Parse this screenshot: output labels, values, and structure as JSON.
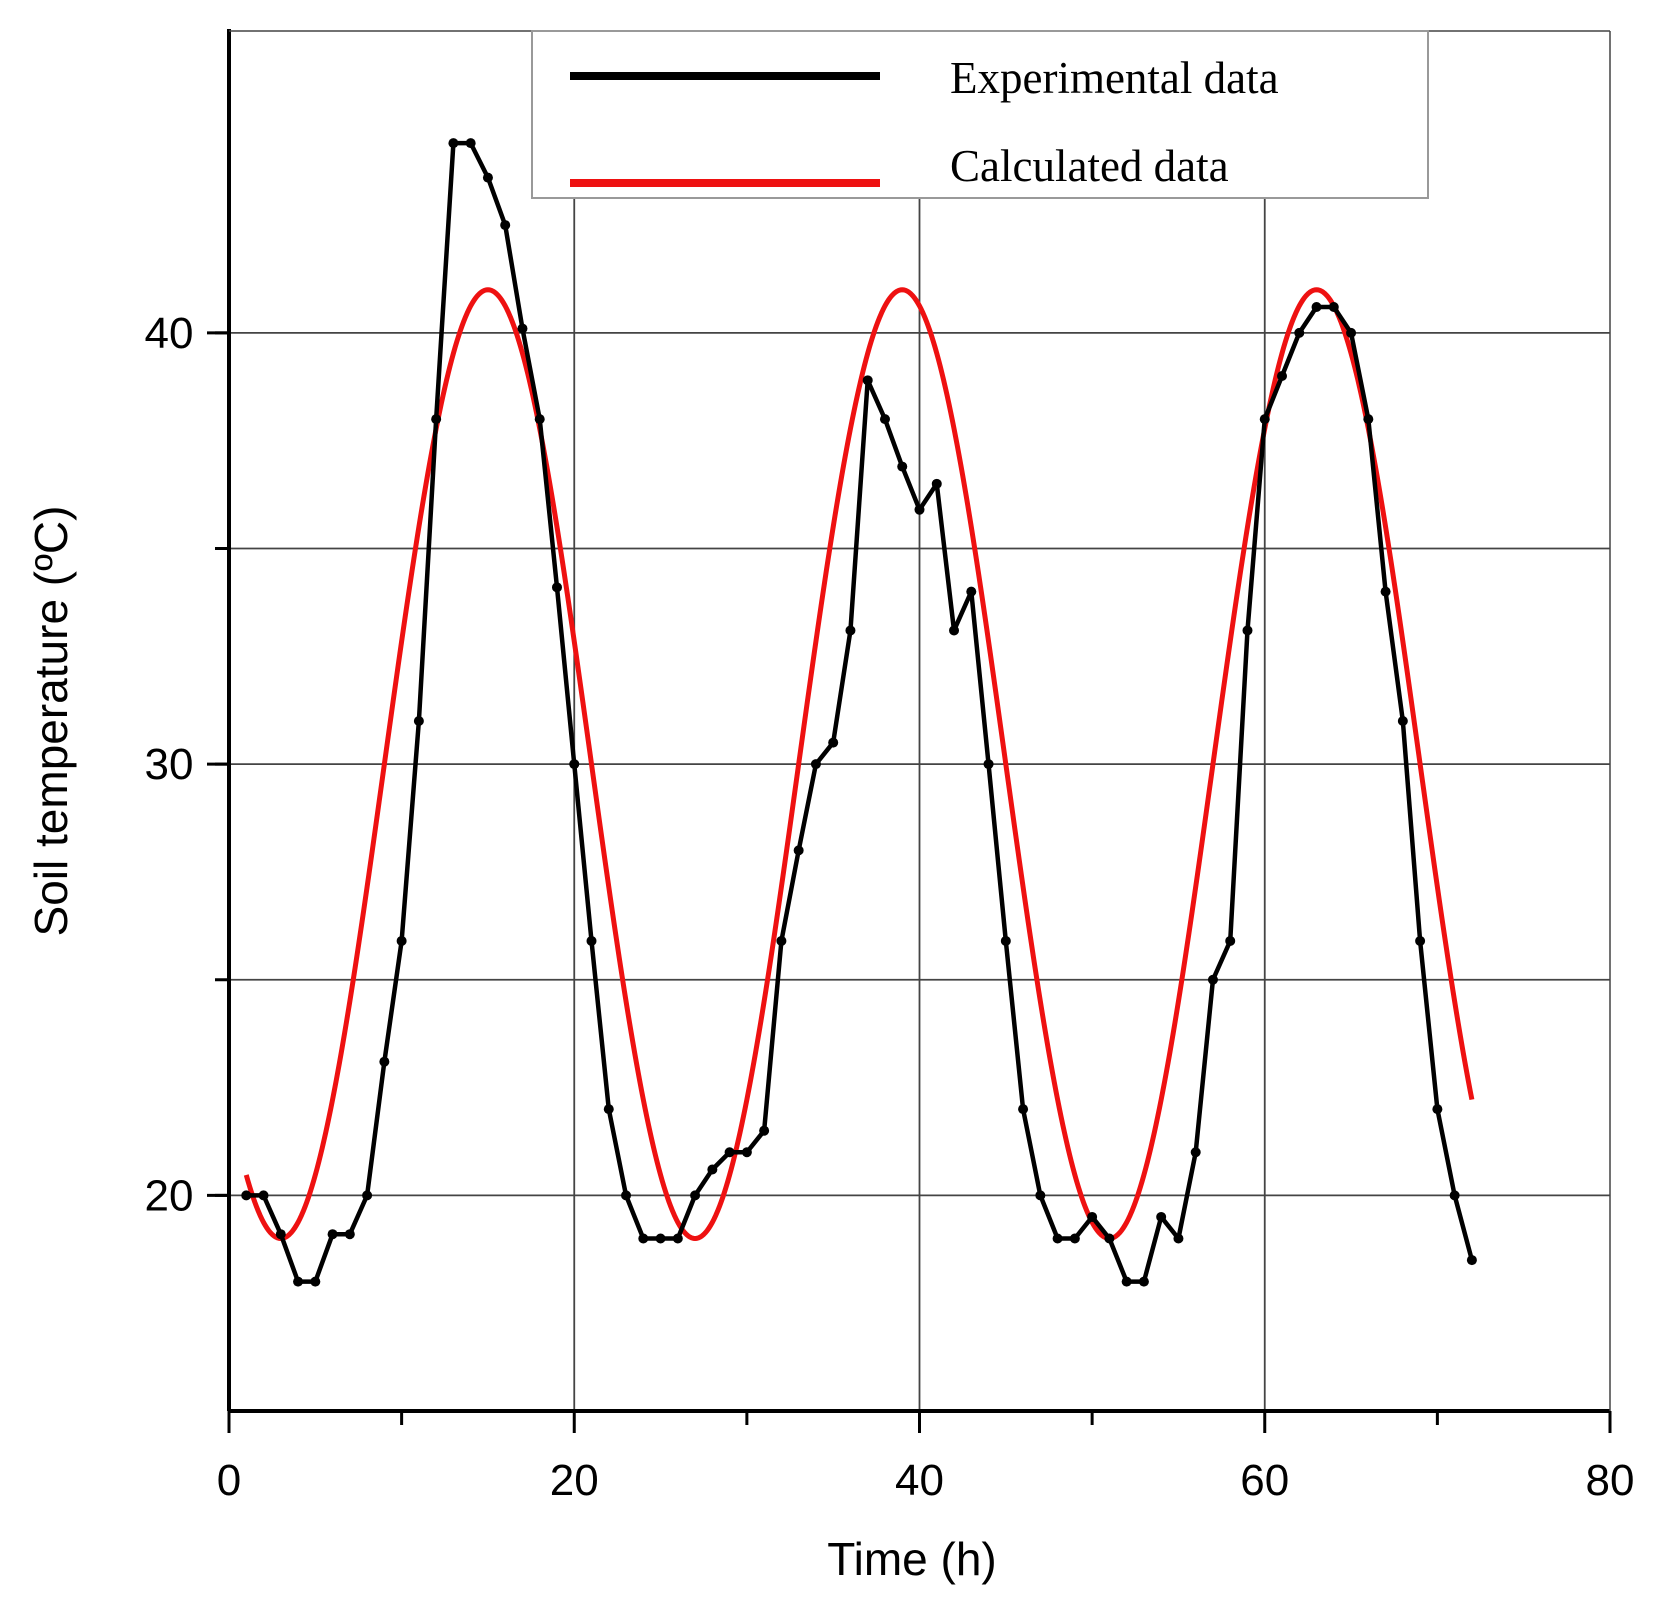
{
  "chart_data": {
    "type": "line",
    "title": "",
    "xlabel": "Time (h)",
    "ylabel": "Soil temperature (ºC)",
    "xlim": [
      0,
      80
    ],
    "ylim": [
      15,
      47
    ],
    "xticks": [
      0,
      20,
      40,
      60,
      80
    ],
    "xtick_labels": [
      "0",
      "20",
      "40",
      "60",
      "80"
    ],
    "xminor": [
      10,
      30,
      50,
      70
    ],
    "yticks": [
      20,
      30,
      40
    ],
    "ytick_labels": [
      "20",
      "30",
      "40"
    ],
    "ygrid": [
      20,
      25,
      30,
      35,
      40
    ],
    "grid": true,
    "legend_position": "top-center",
    "series": [
      {
        "name": "Experimental data",
        "color": "#000000",
        "markers": true,
        "x": [
          1,
          2,
          3,
          4,
          5,
          6,
          7,
          8,
          9,
          10,
          11,
          12,
          13,
          14,
          15,
          16,
          17,
          18,
          19,
          20,
          21,
          22,
          23,
          24,
          25,
          26,
          27,
          28,
          29,
          30,
          31,
          32,
          33,
          34,
          35,
          36,
          37,
          38,
          39,
          40,
          41,
          42,
          43,
          44,
          45,
          46,
          47,
          48,
          49,
          50,
          51,
          52,
          53,
          54,
          55,
          56,
          57,
          58,
          59,
          60,
          61,
          62,
          63,
          64,
          65,
          66,
          67,
          68,
          69,
          70,
          71,
          72
        ],
        "y": [
          20.0,
          20.0,
          19.1,
          18.0,
          18.0,
          19.1,
          19.1,
          20.0,
          23.1,
          25.9,
          31.0,
          38.0,
          44.4,
          44.4,
          43.6,
          42.5,
          40.1,
          38.0,
          34.1,
          30.0,
          25.9,
          22.0,
          20.0,
          19.0,
          19.0,
          19.0,
          20.0,
          20.6,
          21.0,
          21.0,
          21.5,
          25.9,
          28.0,
          30.0,
          30.5,
          33.1,
          38.9,
          38.0,
          36.9,
          35.9,
          36.5,
          33.1,
          34.0,
          30.0,
          25.9,
          22.0,
          20.0,
          19.0,
          19.0,
          19.5,
          19.0,
          18.0,
          18.0,
          19.5,
          19.0,
          21.0,
          25.0,
          25.9,
          33.1,
          38.0,
          39.0,
          40.0,
          40.6,
          40.6,
          40.0,
          38.0,
          34.0,
          31.0,
          25.9,
          22.0,
          20.0,
          18.5
        ]
      },
      {
        "name": "Calculated data",
        "color": "#ee1111",
        "markers": false,
        "period": 24,
        "mean": 30.0,
        "amplitude": 11.0,
        "peak_time": 15,
        "x_start": 1,
        "x_end": 72
      }
    ]
  }
}
